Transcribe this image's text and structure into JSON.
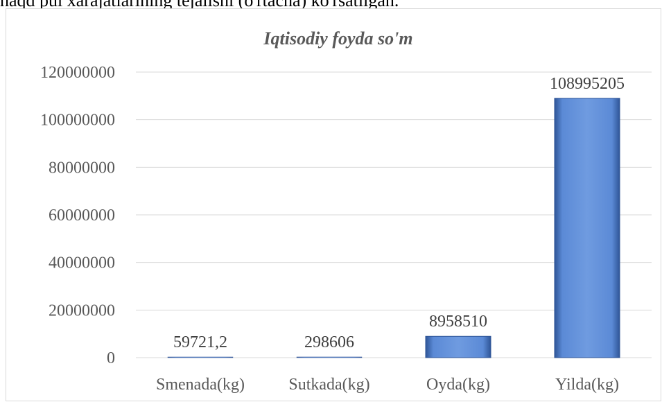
{
  "page": {
    "top_text": "naqd pul xarajatlarining tejalishi (o'rtacha) ko'rsatilgan."
  },
  "chart_data": {
    "type": "bar",
    "title": "Iqtisodiy foyda so'm",
    "categories": [
      "Smenada(kg)",
      "Sutkada(kg)",
      "Oyda(kg)",
      "Yilda(kg)"
    ],
    "values": [
      59721.2,
      298606,
      8958510,
      108995205
    ],
    "data_labels": [
      "59721,2",
      "298606",
      "8958510",
      "108995205"
    ],
    "xlabel": "",
    "ylabel": "",
    "ylim": [
      0,
      120000000
    ],
    "yticks": [
      "0",
      "20000000",
      "40000000",
      "60000000",
      "80000000",
      "100000000",
      "120000000"
    ],
    "grid": true,
    "legend": "none",
    "colors": {
      "bar": "#4472c4",
      "bar_light": "#6f9be0",
      "bar_dark": "#2f5597",
      "grid": "#d9d9d9"
    }
  }
}
